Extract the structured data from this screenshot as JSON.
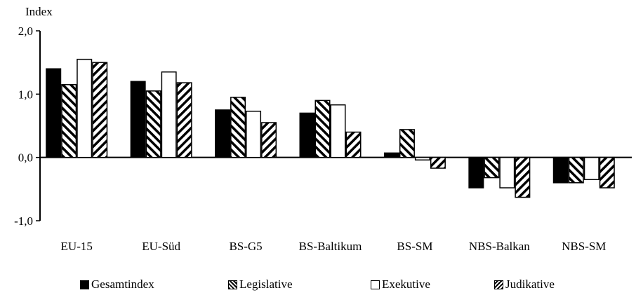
{
  "chart_data": {
    "type": "bar",
    "ylabel": "Index",
    "ylim": [
      -1.0,
      2.0
    ],
    "yticks": [
      2.0,
      1.0,
      0.0,
      -1.0
    ],
    "ytick_labels": [
      "2,0",
      "1,0",
      "0,0",
      "-1,0"
    ],
    "categories": [
      "EU-15",
      "EU-Süd",
      "BS-G5",
      "BS-Baltikum",
      "BS-SM",
      "NBS-Balkan",
      "NBS-SM"
    ],
    "series": [
      {
        "name": "Gesamtindex",
        "pattern": "solid",
        "color": "#000000",
        "values": [
          1.4,
          1.2,
          0.75,
          0.7,
          0.07,
          -0.48,
          -0.4
        ]
      },
      {
        "name": "Legislative",
        "pattern": "hatch-backslash",
        "color": "#000000",
        "values": [
          1.15,
          1.05,
          0.95,
          0.9,
          0.44,
          -0.32,
          -0.4
        ]
      },
      {
        "name": "Exekutive",
        "pattern": "white",
        "color": "#000000",
        "values": [
          1.55,
          1.35,
          0.73,
          0.83,
          -0.04,
          -0.48,
          -0.35
        ]
      },
      {
        "name": "Judikative",
        "pattern": "hatch-slash",
        "color": "#000000",
        "values": [
          1.5,
          1.18,
          0.55,
          0.4,
          -0.17,
          -0.63,
          -0.48
        ]
      }
    ],
    "grid": false,
    "legend_position": "bottom"
  }
}
